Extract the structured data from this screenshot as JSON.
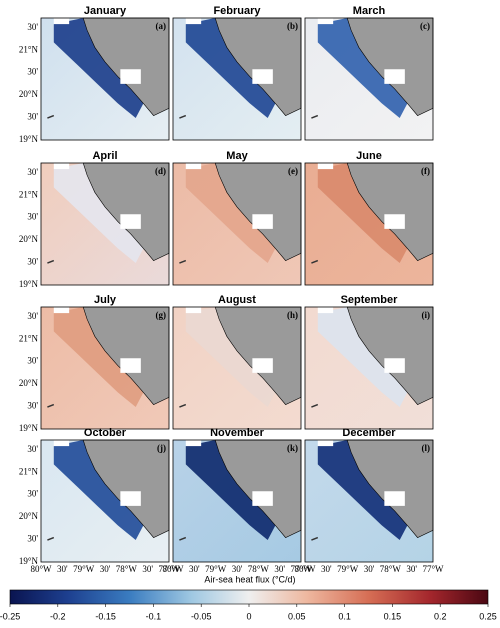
{
  "panels": [
    {
      "title": "January",
      "label": "(a)"
    },
    {
      "title": "February",
      "label": "(b)"
    },
    {
      "title": "March",
      "label": "(c)"
    },
    {
      "title": "April",
      "label": "(d)"
    },
    {
      "title": "May",
      "label": "(e)"
    },
    {
      "title": "June",
      "label": "(f)"
    },
    {
      "title": "July",
      "label": "(g)"
    },
    {
      "title": "August",
      "label": "(h)"
    },
    {
      "title": "September",
      "label": "(i)"
    },
    {
      "title": "October",
      "label": "(j)"
    },
    {
      "title": "November",
      "label": "(k)"
    },
    {
      "title": "December",
      "label": "(l)"
    }
  ],
  "lat_labels": [
    "30'",
    "21°N",
    "30'",
    "20°N",
    "30'",
    "19°N"
  ],
  "lon_labels": [
    "80°W",
    "30'",
    "79°W",
    "30'",
    "78°W",
    "30'",
    "77°W"
  ],
  "colorbar": {
    "label": "Air-sea heat flux (°C/d)",
    "lim": [
      -0.25,
      0.25
    ],
    "ticks": [
      -0.25,
      -0.2,
      -0.15,
      -0.1,
      -0.05,
      0,
      0.05,
      0.1,
      0.15,
      0.2,
      0.25
    ]
  }
}
